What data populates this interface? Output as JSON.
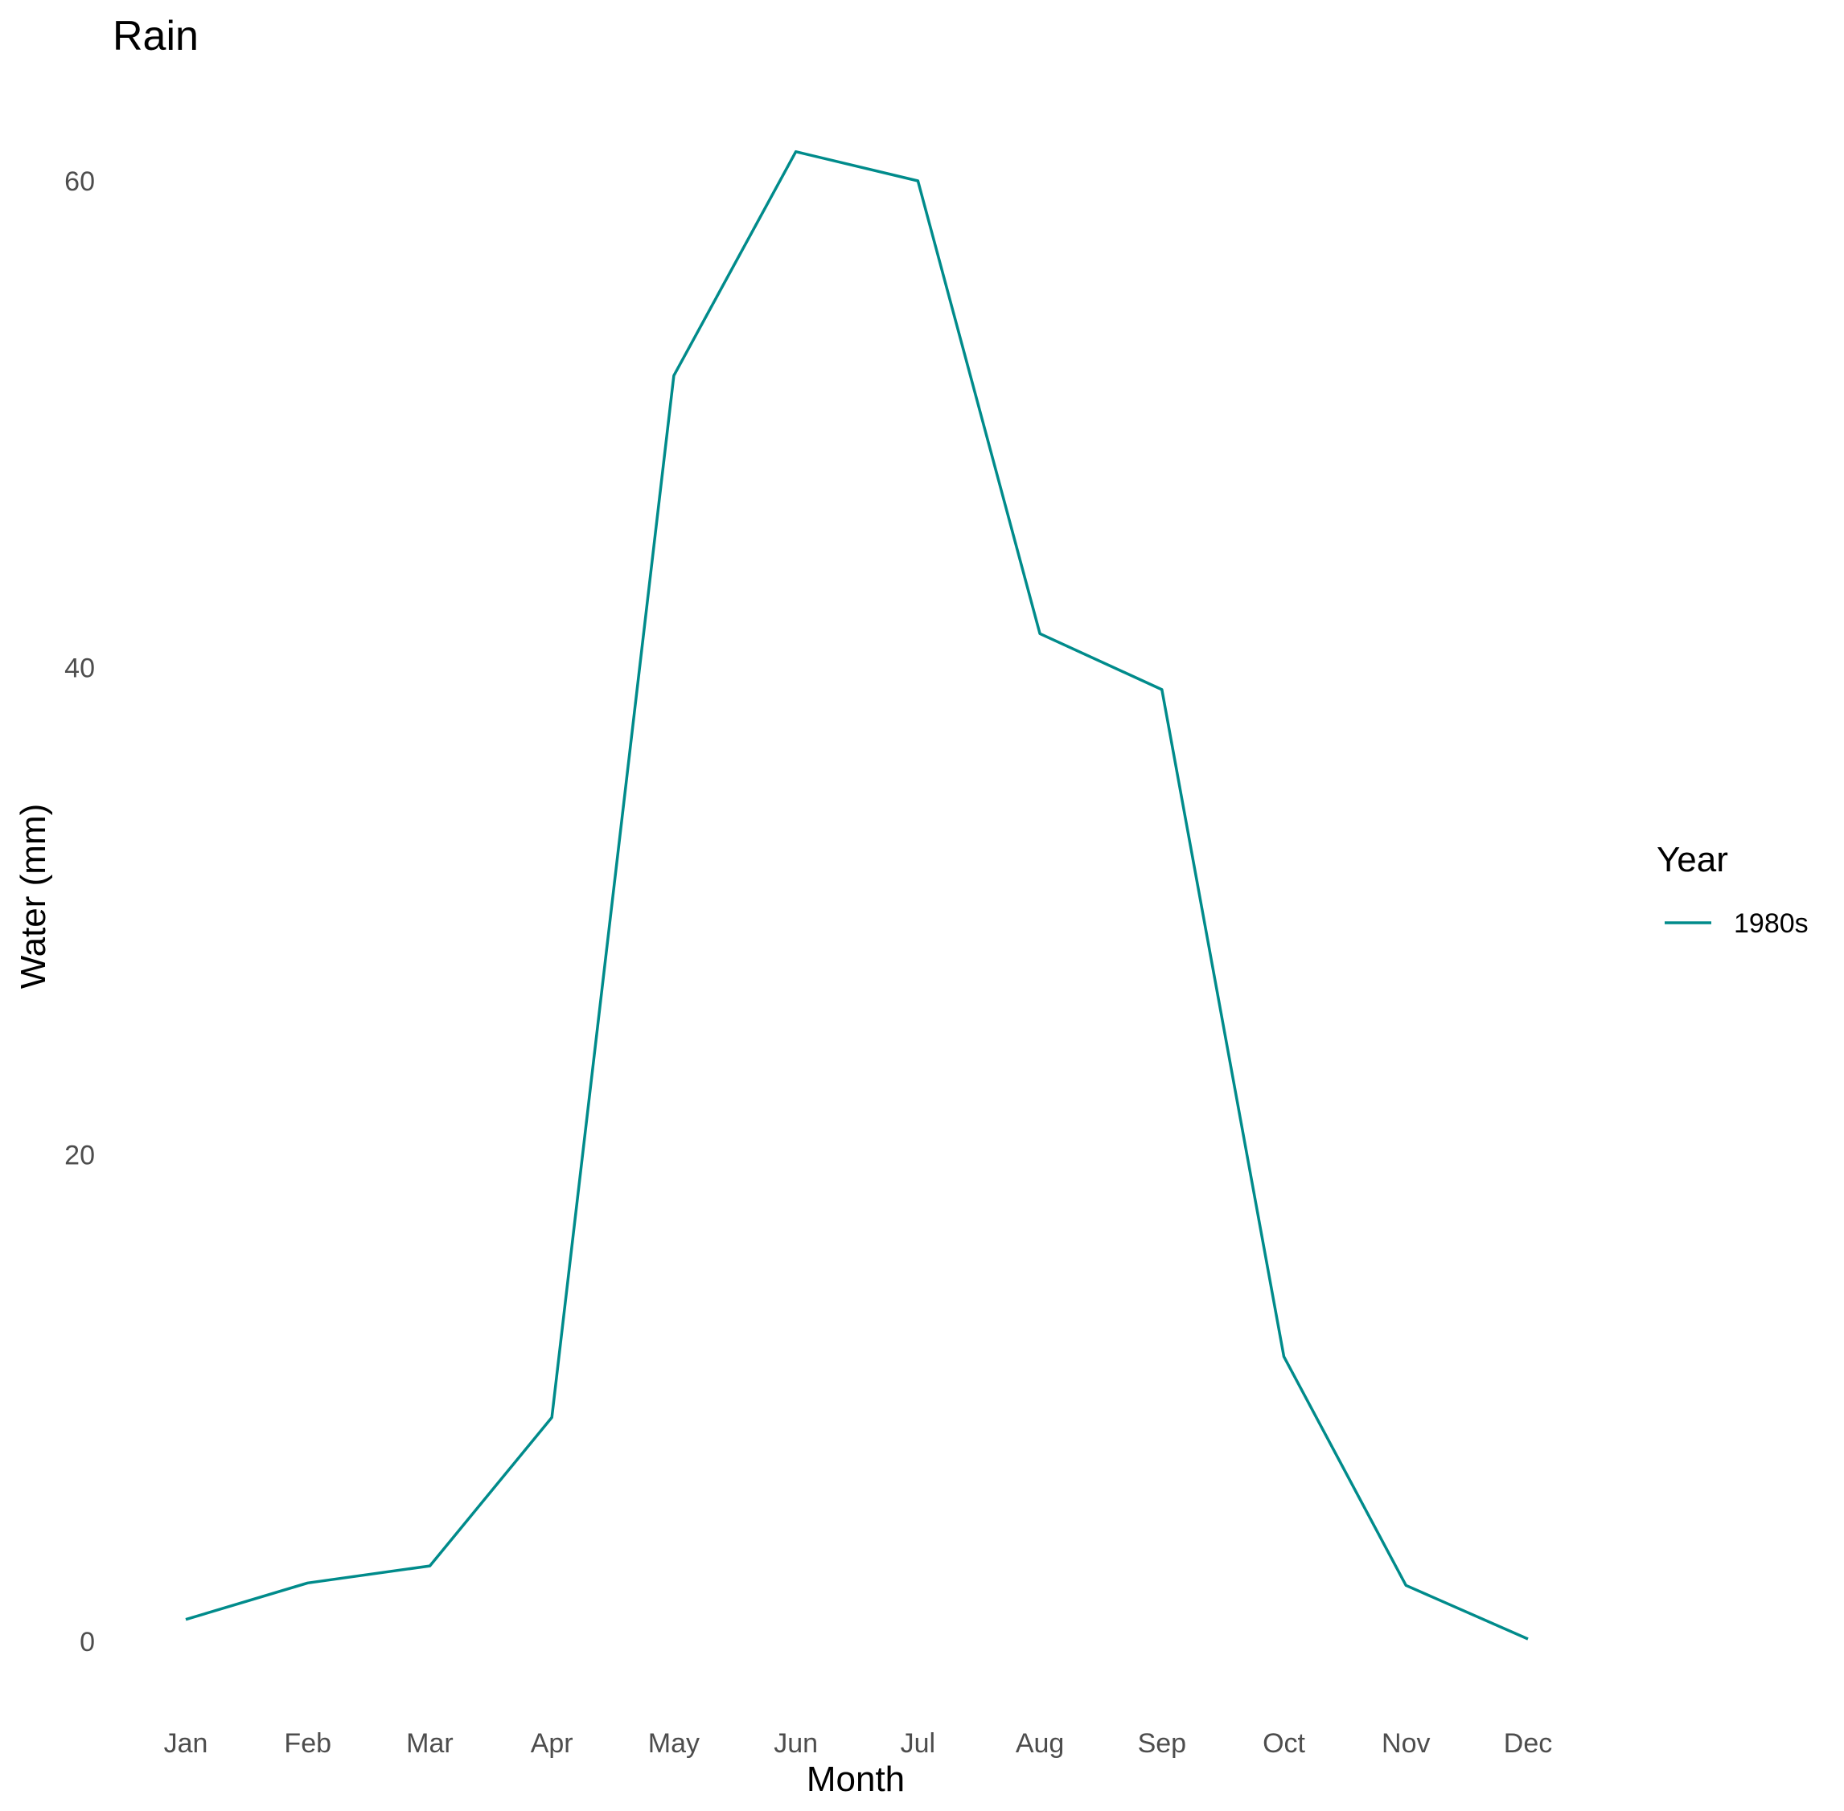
{
  "chart_data": {
    "type": "line",
    "title": "Rain",
    "xlabel": "Month",
    "ylabel": "Water (mm)",
    "categories": [
      "Jan",
      "Feb",
      "Mar",
      "Apr",
      "May",
      "Jun",
      "Jul",
      "Aug",
      "Sep",
      "Oct",
      "Nov",
      "Dec"
    ],
    "ylim": [
      0,
      62.5
    ],
    "yticks": [
      0,
      20,
      40,
      60
    ],
    "grid": false,
    "legend": {
      "title": "Year",
      "position": "right"
    },
    "series": [
      {
        "name": "1980s",
        "color": "#008b8b",
        "values": [
          0.9,
          2.4,
          3.1,
          9.2,
          52.0,
          61.2,
          60.0,
          41.4,
          39.1,
          11.7,
          2.3,
          0.1
        ]
      }
    ]
  }
}
